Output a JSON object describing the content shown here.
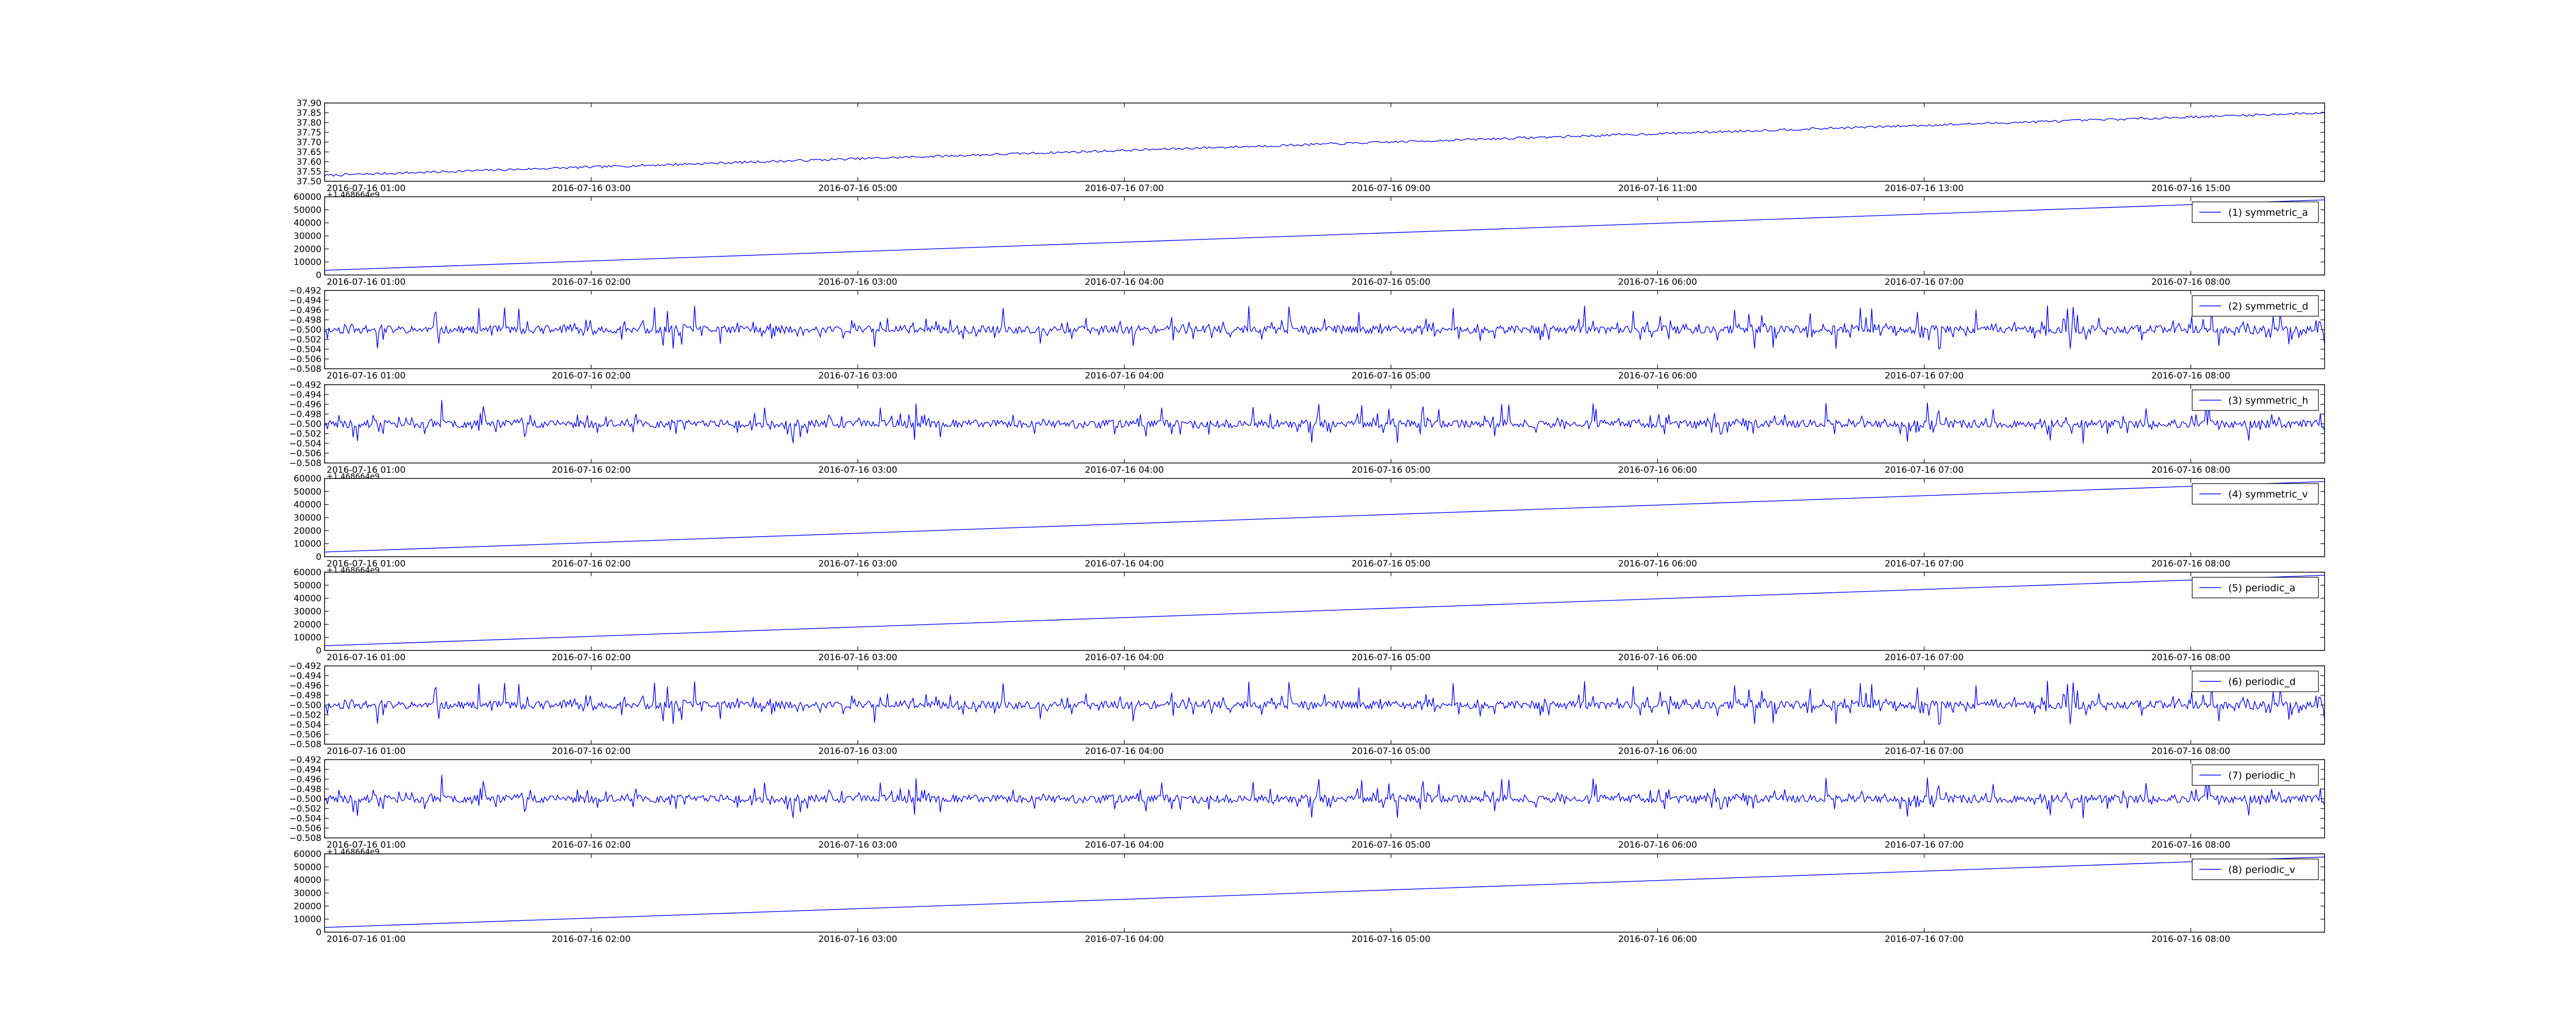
{
  "figure": {
    "background": "#ffffff",
    "line_color": "#0000ff"
  },
  "chart_data": [
    {
      "type": "line",
      "legend": null,
      "offset_text": "",
      "ylim": [
        37.5,
        37.9
      ],
      "yticks": [
        "37.50",
        "37.55",
        "37.60",
        "37.65",
        "37.70",
        "37.75",
        "37.80",
        "37.85",
        "37.90"
      ],
      "xticks": [
        "2016-07-16 01:00",
        "2016-07-16 03:00",
        "2016-07-16 05:00",
        "2016-07-16 07:00",
        "2016-07-16 09:00",
        "2016-07-16 11:00",
        "2016-07-16 13:00",
        "2016-07-16 15:00"
      ],
      "x_first_tick_frac": 0.0,
      "x_tick_spacing_frac": 0.1333,
      "series": [
        {
          "kind": "trend",
          "start": 37.53,
          "end": 37.85,
          "noise": 0.006
        }
      ]
    },
    {
      "type": "line",
      "legend": "(1) symmetric_a",
      "offset_text": "+1.468664e9",
      "ylim": [
        0,
        60000
      ],
      "yticks": [
        "0",
        "10000",
        "20000",
        "30000",
        "40000",
        "50000",
        "60000"
      ],
      "xticks": [
        "2016-07-16 01:00",
        "2016-07-16 02:00",
        "2016-07-16 03:00",
        "2016-07-16 04:00",
        "2016-07-16 05:00",
        "2016-07-16 06:00",
        "2016-07-16 07:00",
        "2016-07-16 08:00"
      ],
      "x_first_tick_frac": 0.0,
      "x_tick_spacing_frac": 0.1333,
      "series": [
        {
          "kind": "ramp",
          "start": 3600,
          "end": 57600
        }
      ]
    },
    {
      "type": "line",
      "legend": "(2) symmetric_d",
      "offset_text": "",
      "ylim": [
        -0.508,
        -0.492
      ],
      "yticks": [
        "−0.508",
        "−0.506",
        "−0.504",
        "−0.502",
        "−0.500",
        "−0.498",
        "−0.496",
        "−0.494",
        "−0.492"
      ],
      "xticks": [
        "2016-07-16 01:00",
        "2016-07-16 02:00",
        "2016-07-16 03:00",
        "2016-07-16 04:00",
        "2016-07-16 05:00",
        "2016-07-16 06:00",
        "2016-07-16 07:00",
        "2016-07-16 08:00"
      ],
      "x_first_tick_frac": 0.0,
      "x_tick_spacing_frac": 0.1333,
      "series": [
        {
          "kind": "noise",
          "center": -0.5,
          "amp": 0.0045,
          "seed": 11
        }
      ]
    },
    {
      "type": "line",
      "legend": "(3) symmetric_h",
      "offset_text": "",
      "ylim": [
        -0.508,
        -0.492
      ],
      "yticks": [
        "−0.508",
        "−0.506",
        "−0.504",
        "−0.502",
        "−0.500",
        "−0.498",
        "−0.496",
        "−0.494",
        "−0.492"
      ],
      "xticks": [
        "2016-07-16 01:00",
        "2016-07-16 02:00",
        "2016-07-16 03:00",
        "2016-07-16 04:00",
        "2016-07-16 05:00",
        "2016-07-16 06:00",
        "2016-07-16 07:00",
        "2016-07-16 08:00"
      ],
      "x_first_tick_frac": 0.0,
      "x_tick_spacing_frac": 0.1333,
      "series": [
        {
          "kind": "noise",
          "center": -0.5,
          "amp": 0.0045,
          "seed": 23
        }
      ]
    },
    {
      "type": "line",
      "legend": "(4) symmetric_v",
      "offset_text": "+1.468664e9",
      "ylim": [
        0,
        60000
      ],
      "yticks": [
        "0",
        "10000",
        "20000",
        "30000",
        "40000",
        "50000",
        "60000"
      ],
      "xticks": [
        "2016-07-16 01:00",
        "2016-07-16 02:00",
        "2016-07-16 03:00",
        "2016-07-16 04:00",
        "2016-07-16 05:00",
        "2016-07-16 06:00",
        "2016-07-16 07:00",
        "2016-07-16 08:00"
      ],
      "x_first_tick_frac": 0.0,
      "x_tick_spacing_frac": 0.1333,
      "series": [
        {
          "kind": "ramp",
          "start": 3600,
          "end": 57600
        }
      ]
    },
    {
      "type": "line",
      "legend": "(5) periodic_a",
      "offset_text": "+1.468664e9",
      "ylim": [
        0,
        60000
      ],
      "yticks": [
        "0",
        "10000",
        "20000",
        "30000",
        "40000",
        "50000",
        "60000"
      ],
      "xticks": [
        "2016-07-16 01:00",
        "2016-07-16 02:00",
        "2016-07-16 03:00",
        "2016-07-16 04:00",
        "2016-07-16 05:00",
        "2016-07-16 06:00",
        "2016-07-16 07:00",
        "2016-07-16 08:00"
      ],
      "x_first_tick_frac": 0.0,
      "x_tick_spacing_frac": 0.1333,
      "series": [
        {
          "kind": "ramp",
          "start": 3600,
          "end": 57600
        }
      ]
    },
    {
      "type": "line",
      "legend": "(6) periodic_d",
      "offset_text": "",
      "ylim": [
        -0.508,
        -0.492
      ],
      "yticks": [
        "−0.508",
        "−0.506",
        "−0.504",
        "−0.502",
        "−0.500",
        "−0.498",
        "−0.496",
        "−0.494",
        "−0.492"
      ],
      "xticks": [
        "2016-07-16 01:00",
        "2016-07-16 02:00",
        "2016-07-16 03:00",
        "2016-07-16 04:00",
        "2016-07-16 05:00",
        "2016-07-16 06:00",
        "2016-07-16 07:00",
        "2016-07-16 08:00"
      ],
      "x_first_tick_frac": 0.0,
      "x_tick_spacing_frac": 0.1333,
      "series": [
        {
          "kind": "noise",
          "center": -0.5,
          "amp": 0.0045,
          "seed": 11
        }
      ]
    },
    {
      "type": "line",
      "legend": "(7) periodic_h",
      "offset_text": "",
      "ylim": [
        -0.508,
        -0.492
      ],
      "yticks": [
        "−0.508",
        "−0.506",
        "−0.504",
        "−0.502",
        "−0.500",
        "−0.498",
        "−0.496",
        "−0.494",
        "−0.492"
      ],
      "xticks": [
        "2016-07-16 01:00",
        "2016-07-16 02:00",
        "2016-07-16 03:00",
        "2016-07-16 04:00",
        "2016-07-16 05:00",
        "2016-07-16 06:00",
        "2016-07-16 07:00",
        "2016-07-16 08:00"
      ],
      "x_first_tick_frac": 0.0,
      "x_tick_spacing_frac": 0.1333,
      "series": [
        {
          "kind": "noise",
          "center": -0.5,
          "amp": 0.0045,
          "seed": 23
        }
      ]
    },
    {
      "type": "line",
      "legend": "(8) periodic_v",
      "offset_text": "+1.468664e9",
      "ylim": [
        0,
        60000
      ],
      "yticks": [
        "0",
        "10000",
        "20000",
        "30000",
        "40000",
        "50000",
        "60000"
      ],
      "xticks": [
        "2016-07-16 01:00",
        "2016-07-16 02:00",
        "2016-07-16 03:00",
        "2016-07-16 04:00",
        "2016-07-16 05:00",
        "2016-07-16 06:00",
        "2016-07-16 07:00",
        "2016-07-16 08:00"
      ],
      "x_first_tick_frac": 0.0,
      "x_tick_spacing_frac": 0.1333,
      "series": [
        {
          "kind": "ramp",
          "start": 3600,
          "end": 57600
        }
      ]
    }
  ]
}
